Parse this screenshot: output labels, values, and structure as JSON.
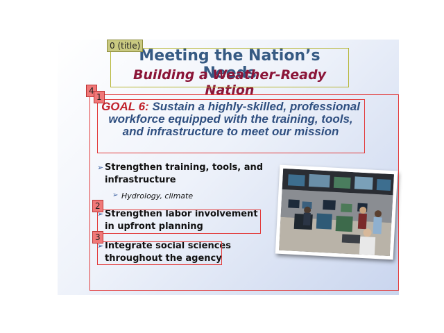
{
  "slide": {
    "title": "Meeting the Nation’s Needs",
    "subtitle": "Building a Weather-Ready Nation",
    "goal_lead": "GOAL 6:",
    "goal_text": "Sustain a highly-skilled, professional workforce equipped with the training, tools, and infrastructure to meet our mission",
    "bullets": [
      "Strengthen training, tools, and infrastructure",
      "Strengthen labor involvement in upfront planning",
      "Integrate social sciences throughout the agency"
    ],
    "sub_bullet": "Hydrology, climate"
  },
  "annotations": {
    "title_tag": "0 (title)",
    "tag_1": "1",
    "tag_2": "2",
    "tag_3": "3",
    "tag_4": "4"
  },
  "colors": {
    "title": "#365a83",
    "subtitle": "#8b1538",
    "goal_lead": "#c0202a",
    "goal_text": "#2f4f80",
    "annotation_red": "#e23a3a",
    "annotation_olive": "#b5b534"
  },
  "photo": {
    "icon": "operations-room-photo"
  }
}
